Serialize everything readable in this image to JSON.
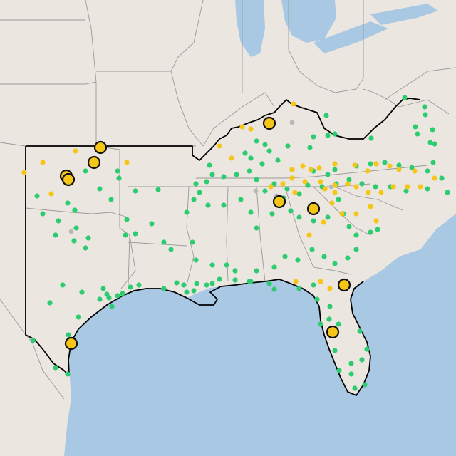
{
  "map": {
    "colors": {
      "water": "#a9c8e4",
      "land": "#ebe6e0",
      "state_border": "#9a9a9a",
      "region_outline": "#000000",
      "marker_green": "#2ecc71",
      "marker_yellow": "#f5c518",
      "marker_gray": "#b8b8b8",
      "marker_outline": "#111111"
    },
    "marker_status_counts": {
      "green_small": 150,
      "yellow_small": 48,
      "gray_small": 5,
      "yellow_large_outlined": 10
    }
  }
}
